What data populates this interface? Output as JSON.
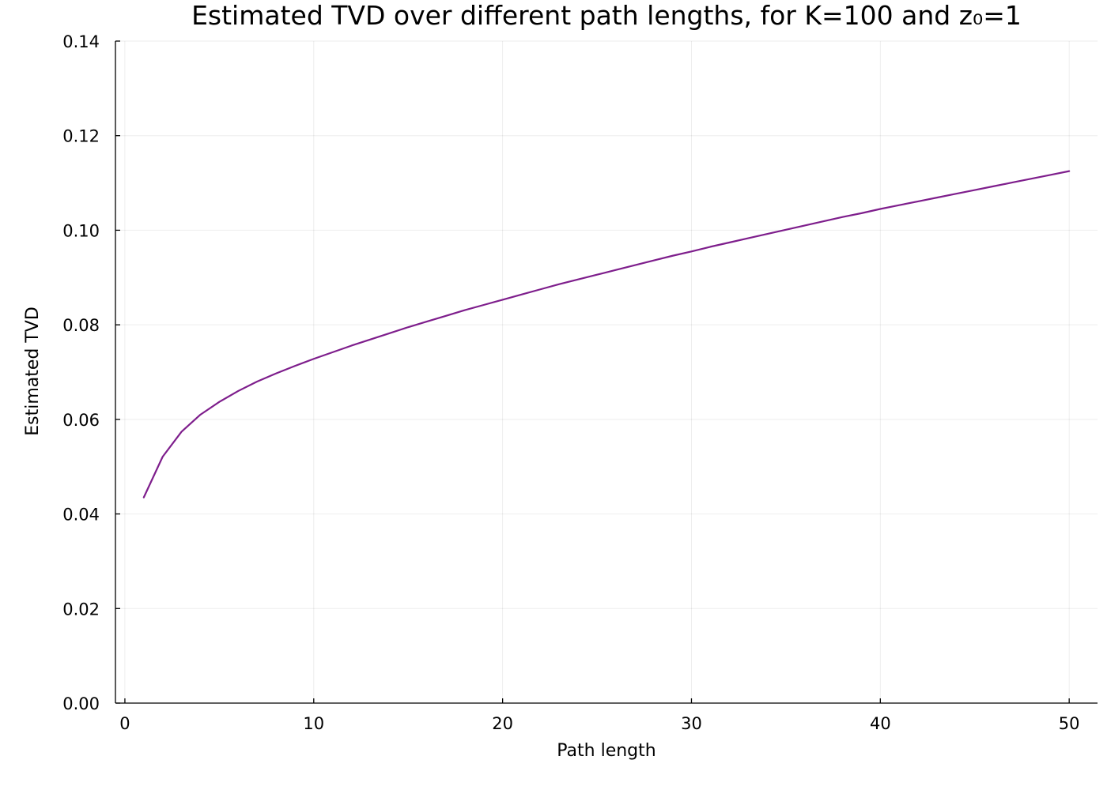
{
  "chart_data": {
    "type": "line",
    "title": "Estimated TVD over different path lengths, for K=100 and z₀=1",
    "xlabel": "Path length",
    "ylabel": "Estimated TVD",
    "xlim": [
      -0.5,
      51.5
    ],
    "ylim": [
      0,
      0.14
    ],
    "xticks": [
      0,
      10,
      20,
      30,
      40,
      50
    ],
    "xtick_labels": [
      "0",
      "10",
      "20",
      "30",
      "40",
      "50"
    ],
    "yticks": [
      0,
      0.02,
      0.04,
      0.06,
      0.08,
      0.1,
      0.12,
      0.14
    ],
    "ytick_labels": [
      "0.00",
      "0.02",
      "0.04",
      "0.06",
      "0.08",
      "0.10",
      "0.12",
      "0.14"
    ],
    "grid": true,
    "legend": "none",
    "series": [
      {
        "color": "#7e1e8c",
        "x": [
          1,
          2,
          3,
          4,
          5,
          6,
          7,
          8,
          9,
          10,
          11,
          12,
          13,
          14,
          15,
          16,
          17,
          18,
          19,
          20,
          21,
          22,
          23,
          24,
          25,
          26,
          27,
          28,
          29,
          30,
          31,
          32,
          33,
          34,
          35,
          36,
          37,
          38,
          39,
          40,
          41,
          42,
          43,
          44,
          45,
          46,
          47,
          48,
          49,
          50
        ],
        "y": [
          0.0435,
          0.0521,
          0.0574,
          0.061,
          0.0637,
          0.066,
          0.068,
          0.0697,
          0.0713,
          0.0728,
          0.0742,
          0.0756,
          0.0769,
          0.0782,
          0.0795,
          0.0807,
          0.0819,
          0.0831,
          0.0842,
          0.0853,
          0.0864,
          0.0875,
          0.0886,
          0.0896,
          0.0906,
          0.0916,
          0.0926,
          0.0936,
          0.0946,
          0.0955,
          0.0965,
          0.0974,
          0.0983,
          0.0992,
          0.1001,
          0.101,
          0.1019,
          0.1028,
          0.1036,
          0.1045,
          0.1053,
          0.1061,
          0.1069,
          0.1077,
          0.1085,
          0.1093,
          0.1101,
          0.1109,
          0.1117,
          0.1125
        ]
      }
    ]
  }
}
